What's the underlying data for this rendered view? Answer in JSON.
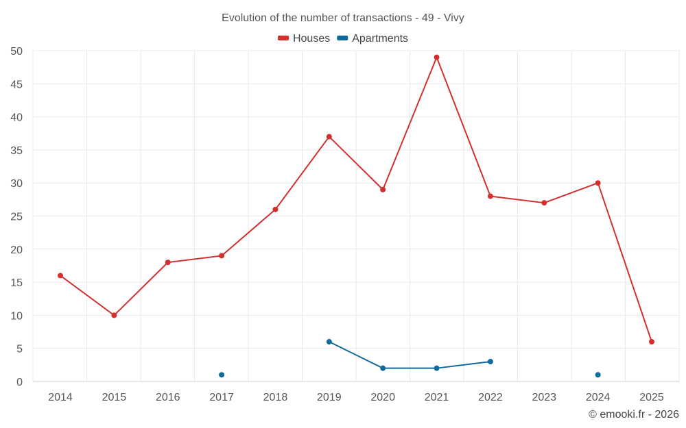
{
  "chart_data": {
    "type": "line",
    "title": "Evolution of the number of transactions - 49 - Vivy",
    "xlabel": "",
    "ylabel": "",
    "categories": [
      "2014",
      "2015",
      "2016",
      "2017",
      "2018",
      "2019",
      "2020",
      "2021",
      "2022",
      "2023",
      "2024",
      "2025"
    ],
    "ylim": [
      0,
      50
    ],
    "yticks": [
      0,
      5,
      10,
      15,
      20,
      25,
      30,
      35,
      40,
      45,
      50
    ],
    "grid": true,
    "legend_position": "top-center",
    "series": [
      {
        "name": "Houses",
        "color": "#d32f2f",
        "values": [
          16,
          10,
          18,
          19,
          26,
          37,
          29,
          49,
          28,
          27,
          30,
          6
        ]
      },
      {
        "name": "Apartments",
        "color": "#0f6a9b",
        "values": [
          null,
          null,
          null,
          1,
          null,
          6,
          2,
          2,
          3,
          null,
          1,
          null
        ]
      }
    ]
  },
  "credit": "© emooki.fr - 2026"
}
